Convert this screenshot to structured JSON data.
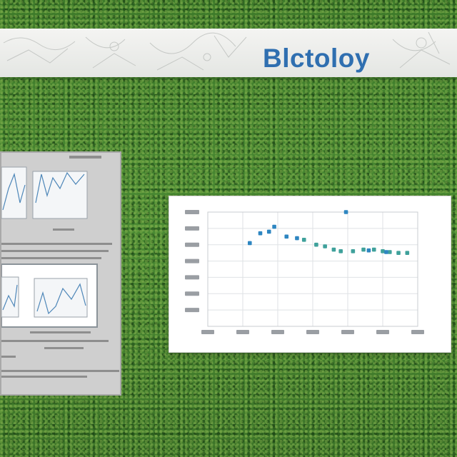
{
  "banner": {
    "title": "Blctoloy",
    "title_color": "#2f6fb0"
  },
  "chart_data": {
    "type": "scatter",
    "title": "",
    "xlabel": "",
    "ylabel": "",
    "x_categories": 7,
    "y_levels": 8,
    "series": [
      {
        "color": "#2e86c1",
        "points": [
          [
            1.2,
            5.1
          ],
          [
            1.5,
            5.7
          ],
          [
            1.75,
            5.8
          ],
          [
            1.9,
            6.1
          ],
          [
            2.25,
            5.5
          ],
          [
            2.55,
            5.4
          ]
        ]
      },
      {
        "color": "#3fa19b",
        "points": [
          [
            2.75,
            5.3
          ],
          [
            3.1,
            5.0
          ],
          [
            3.35,
            4.9
          ],
          [
            3.6,
            4.7
          ],
          [
            3.8,
            4.6
          ],
          [
            4.15,
            4.6
          ],
          [
            4.45,
            4.7
          ],
          [
            4.75,
            4.7
          ],
          [
            5.0,
            4.6
          ],
          [
            5.2,
            4.55
          ],
          [
            5.45,
            4.5
          ],
          [
            5.7,
            4.5
          ]
        ]
      },
      {
        "color": "#2e86c1",
        "points": [
          [
            3.95,
            7.0
          ],
          [
            4.6,
            4.65
          ],
          [
            5.1,
            4.55
          ]
        ]
      }
    ]
  }
}
